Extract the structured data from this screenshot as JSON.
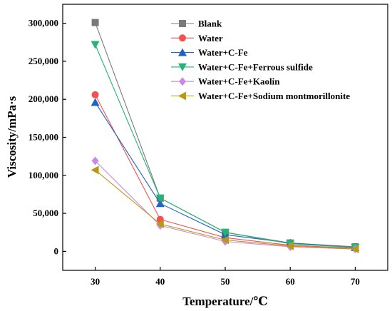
{
  "chart_data": {
    "type": "line",
    "xlabel": "Temperature/℃",
    "ylabel": "Viscosity/mPa·s",
    "x": [
      30,
      40,
      50,
      60,
      70
    ],
    "xlim": [
      25,
      75
    ],
    "ylim": [
      -25000,
      325000
    ],
    "xticks": [
      "30",
      "40",
      "50",
      "60",
      "70"
    ],
    "yticks": [
      "0",
      "50,000",
      "100,000",
      "150,000",
      "200,000",
      "250,000",
      "300,000"
    ],
    "ytick_values": [
      0,
      50000,
      100000,
      150000,
      200000,
      250000,
      300000
    ],
    "legend_position": "top-right",
    "grid": false,
    "series": [
      {
        "name": "Blank",
        "color": "#7a7a7a",
        "marker": "square",
        "values": [
          301000,
          70000,
          25000,
          11000,
          6000
        ]
      },
      {
        "name": "Water",
        "color": "#f4514f",
        "marker": "circle",
        "values": [
          206000,
          42000,
          18000,
          8000,
          4000
        ]
      },
      {
        "name": "Water+C-Fe",
        "color": "#1e64c8",
        "marker": "triangle-up",
        "values": [
          196000,
          63000,
          22000,
          11000,
          5000
        ]
      },
      {
        "name": "Water+C-Fe+Ferrous sulfide",
        "color": "#22b573",
        "marker": "triangle-down",
        "values": [
          272000,
          70000,
          25000,
          10000,
          5000
        ]
      },
      {
        "name": "Water+C-Fe+Kaolin",
        "color": "#cc88e8",
        "marker": "diamond",
        "values": [
          119000,
          34000,
          13000,
          6000,
          3000
        ]
      },
      {
        "name": "Water+C-Fe+Sodium montmorillonite",
        "color": "#b89a10",
        "marker": "triangle-left",
        "values": [
          107000,
          36000,
          15000,
          7000,
          3000
        ]
      }
    ]
  }
}
